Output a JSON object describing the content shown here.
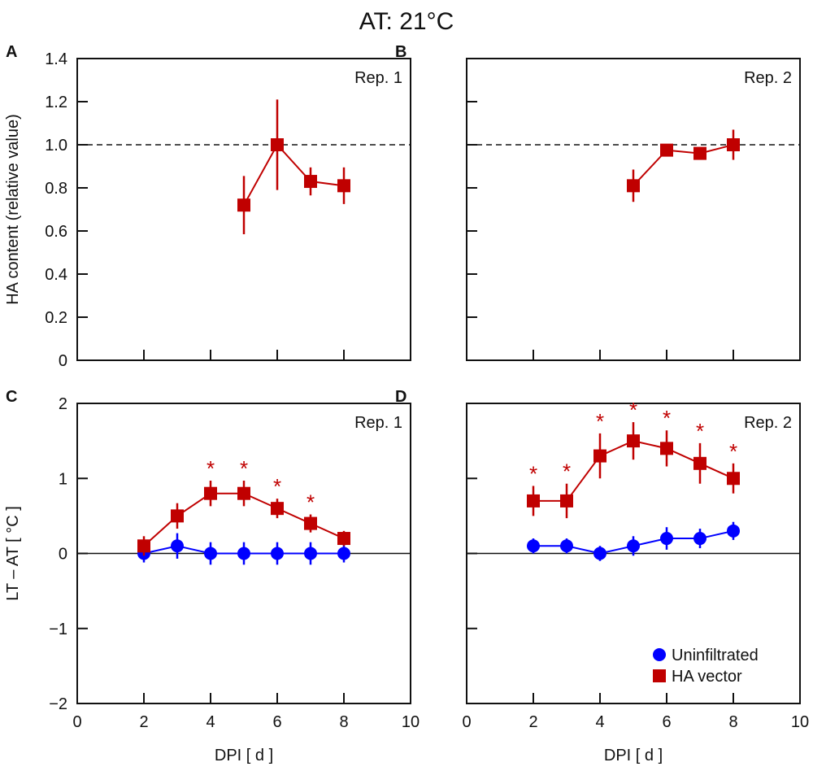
{
  "title": "AT: 21°C",
  "colors": {
    "ha": "#c00000",
    "uninf": "#0000ff",
    "axis": "#111111"
  },
  "legend": {
    "position": "bottom-right",
    "items": [
      {
        "label": "Uninfiltrated",
        "marker": "circle",
        "color": "#0000ff"
      },
      {
        "label": "HA vector",
        "marker": "square",
        "color": "#c00000"
      }
    ]
  },
  "chart_data": [
    {
      "panel": "A",
      "type": "line",
      "annotation": "Rep. 1",
      "ylabel": "HA content (relative value)",
      "xlabel": "",
      "xlim": [
        0,
        10
      ],
      "ylim": [
        0,
        1.4
      ],
      "xticks": [
        2,
        4,
        6,
        8
      ],
      "yticks": [
        "0",
        "0.2",
        "0.4",
        "0.6",
        "0.8",
        "1.0",
        "1.2",
        "1.4"
      ],
      "reference_line": 1.0,
      "series": [
        {
          "name": "HA vector",
          "x": [
            5,
            6,
            7,
            8
          ],
          "y": [
            0.72,
            1.0,
            0.83,
            0.81
          ],
          "err": [
            0.135,
            0.21,
            0.065,
            0.085
          ]
        }
      ]
    },
    {
      "panel": "B",
      "type": "line",
      "annotation": "Rep. 2",
      "ylabel": "",
      "xlabel": "",
      "xlim": [
        0,
        10
      ],
      "ylim": [
        0,
        1.4
      ],
      "xticks": [
        2,
        4,
        6,
        8
      ],
      "yticks": [],
      "reference_line": 1.0,
      "series": [
        {
          "name": "HA vector",
          "x": [
            5,
            6,
            7,
            8
          ],
          "y": [
            0.81,
            0.975,
            0.96,
            1.0
          ],
          "err": [
            0.075,
            0.02,
            0.02,
            0.07
          ]
        }
      ]
    },
    {
      "panel": "C",
      "type": "line",
      "annotation": "Rep. 1",
      "ylabel": "LT – AT [ °C ]",
      "xlabel": "DPI [ d ]",
      "xlim": [
        0,
        10
      ],
      "ylim": [
        -2,
        2
      ],
      "xticks": [
        "0",
        "2",
        "4",
        "6",
        "8",
        "10"
      ],
      "yticks": [
        "−2",
        "−1",
        "0",
        "1",
        "2"
      ],
      "reference_line": 0,
      "series": [
        {
          "name": "Uninfiltrated",
          "x": [
            2,
            3,
            4,
            5,
            6,
            7,
            8
          ],
          "y": [
            0,
            0.1,
            0,
            0,
            0,
            0,
            0
          ],
          "err": [
            0.12,
            0.17,
            0.15,
            0.15,
            0.15,
            0.15,
            0.12
          ]
        },
        {
          "name": "HA vector",
          "x": [
            2,
            3,
            4,
            5,
            6,
            7,
            8
          ],
          "y": [
            0.1,
            0.5,
            0.8,
            0.8,
            0.6,
            0.4,
            0.2
          ],
          "err": [
            0.13,
            0.17,
            0.17,
            0.17,
            0.13,
            0.12,
            0.1
          ]
        }
      ],
      "significant_x": [
        4,
        5,
        6,
        7
      ]
    },
    {
      "panel": "D",
      "type": "line",
      "annotation": "Rep. 2",
      "ylabel": "",
      "xlabel": "DPI [ d ]",
      "xlim": [
        0,
        10
      ],
      "ylim": [
        -2,
        2
      ],
      "xticks": [
        "0",
        "2",
        "4",
        "6",
        "8",
        "10"
      ],
      "yticks": [],
      "reference_line": 0,
      "series": [
        {
          "name": "Uninfiltrated",
          "x": [
            2,
            3,
            4,
            5,
            6,
            7,
            8
          ],
          "y": [
            0.1,
            0.1,
            0,
            0.1,
            0.2,
            0.2,
            0.3
          ],
          "err": [
            0.1,
            0.1,
            0.1,
            0.13,
            0.15,
            0.13,
            0.12
          ]
        },
        {
          "name": "HA vector",
          "x": [
            2,
            3,
            4,
            5,
            6,
            7,
            8
          ],
          "y": [
            0.7,
            0.7,
            1.3,
            1.5,
            1.4,
            1.2,
            1.0
          ],
          "err": [
            0.2,
            0.23,
            0.3,
            0.25,
            0.24,
            0.27,
            0.2
          ]
        }
      ],
      "significant_x": [
        2,
        3,
        4,
        5,
        6,
        7,
        8
      ]
    }
  ]
}
